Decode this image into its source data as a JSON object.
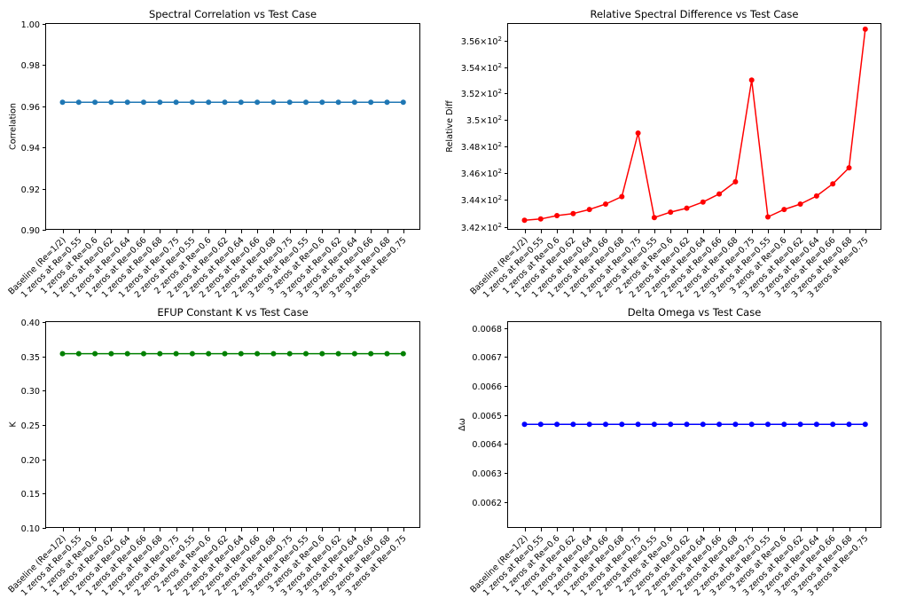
{
  "chart_data": [
    {
      "type": "line",
      "title": "Spectral Correlation vs Test Case",
      "xlabel": "",
      "ylabel": "Correlation",
      "ylim": [
        0.9,
        1.0
      ],
      "yticks": [
        0.9,
        0.92,
        0.94,
        0.96,
        0.98,
        1.0
      ],
      "ytick_labels": [
        "0.90",
        "0.92",
        "0.94",
        "0.96",
        "0.98",
        "1.00"
      ],
      "log_scale": false,
      "grid": false,
      "color": "#1f77b4",
      "categories": [
        "Baseline (Re=1/2)",
        "1 zeros at Re=0.55",
        "1 zeros at Re=0.6",
        "1 zeros at Re=0.62",
        "1 zeros at Re=0.64",
        "1 zeros at Re=0.66",
        "1 zeros at Re=0.68",
        "1 zeros at Re=0.75",
        "2 zeros at Re=0.55",
        "2 zeros at Re=0.6",
        "2 zeros at Re=0.62",
        "2 zeros at Re=0.64",
        "2 zeros at Re=0.66",
        "2 zeros at Re=0.68",
        "2 zeros at Re=0.75",
        "3 zeros at Re=0.55",
        "3 zeros at Re=0.6",
        "3 zeros at Re=0.62",
        "3 zeros at Re=0.64",
        "3 zeros at Re=0.66",
        "3 zeros at Re=0.68",
        "3 zeros at Re=0.75"
      ],
      "values": [
        0.962,
        0.962,
        0.962,
        0.962,
        0.962,
        0.962,
        0.962,
        0.962,
        0.962,
        0.962,
        0.962,
        0.962,
        0.962,
        0.962,
        0.962,
        0.962,
        0.962,
        0.962,
        0.962,
        0.962,
        0.962,
        0.962
      ]
    },
    {
      "type": "line",
      "title": "Relative Spectral Difference vs Test Case",
      "xlabel": "",
      "ylabel": "Relative Diff",
      "ylim": [
        341.8,
        357.3
      ],
      "yticks": [
        342,
        344,
        346,
        348,
        350,
        352,
        354,
        356
      ],
      "ytick_labels": [
        "3.42 × 10²",
        "3.44 × 10²",
        "3.46 × 10²",
        "3.48 × 10²",
        "3.5 × 10²",
        "3.52 × 10²",
        "3.54 × 10²",
        "3.56 × 10²"
      ],
      "log_scale": true,
      "grid": false,
      "color": "#ff0000",
      "categories": [
        "Baseline (Re=1/2)",
        "1 zeros at Re=0.55",
        "1 zeros at Re=0.6",
        "1 zeros at Re=0.62",
        "1 zeros at Re=0.64",
        "1 zeros at Re=0.66",
        "1 zeros at Re=0.68",
        "1 zeros at Re=0.75",
        "2 zeros at Re=0.55",
        "2 zeros at Re=0.6",
        "2 zeros at Re=0.62",
        "2 zeros at Re=0.64",
        "2 zeros at Re=0.66",
        "2 zeros at Re=0.68",
        "2 zeros at Re=0.75",
        "3 zeros at Re=0.55",
        "3 zeros at Re=0.6",
        "3 zeros at Re=0.62",
        "3 zeros at Re=0.64",
        "3 zeros at Re=0.66",
        "3 zeros at Re=0.68",
        "3 zeros at Re=0.75"
      ],
      "values": [
        342.5,
        342.6,
        342.85,
        343.0,
        343.3,
        343.7,
        344.25,
        349.0,
        342.7,
        343.1,
        343.4,
        343.85,
        344.45,
        345.35,
        353.0,
        342.75,
        343.3,
        343.7,
        344.3,
        345.2,
        346.4,
        356.9
      ]
    },
    {
      "type": "line",
      "title": "EFUP Constant K vs Test Case",
      "xlabel": "",
      "ylabel": "K",
      "ylim": [
        0.1,
        0.4
      ],
      "yticks": [
        0.1,
        0.15,
        0.2,
        0.25,
        0.3,
        0.35,
        0.4
      ],
      "ytick_labels": [
        "0.10",
        "0.15",
        "0.20",
        "0.25",
        "0.30",
        "0.35",
        "0.40"
      ],
      "log_scale": false,
      "grid": false,
      "color": "#008000",
      "categories": [
        "Baseline (Re=1/2)",
        "1 zeros at Re=0.55",
        "1 zeros at Re=0.6",
        "1 zeros at Re=0.62",
        "1 zeros at Re=0.64",
        "1 zeros at Re=0.66",
        "1 zeros at Re=0.68",
        "1 zeros at Re=0.75",
        "2 zeros at Re=0.55",
        "2 zeros at Re=0.6",
        "2 zeros at Re=0.62",
        "2 zeros at Re=0.64",
        "2 zeros at Re=0.66",
        "2 zeros at Re=0.68",
        "2 zeros at Re=0.75",
        "3 zeros at Re=0.55",
        "3 zeros at Re=0.6",
        "3 zeros at Re=0.62",
        "3 zeros at Re=0.64",
        "3 zeros at Re=0.66",
        "3 zeros at Re=0.68",
        "3 zeros at Re=0.75"
      ],
      "values": [
        0.354,
        0.354,
        0.354,
        0.354,
        0.354,
        0.354,
        0.354,
        0.354,
        0.354,
        0.354,
        0.354,
        0.354,
        0.354,
        0.354,
        0.354,
        0.354,
        0.354,
        0.354,
        0.354,
        0.354,
        0.354,
        0.354
      ]
    },
    {
      "type": "line",
      "title": "Delta Omega vs Test Case",
      "xlabel": "",
      "ylabel": "Δω",
      "ylim": [
        0.00611,
        0.00682
      ],
      "yticks": [
        0.0062,
        0.0063,
        0.0064,
        0.0065,
        0.0066,
        0.0067,
        0.0068
      ],
      "ytick_labels": [
        "0.0062",
        "0.0063",
        "0.0064",
        "0.0065",
        "0.0066",
        "0.0067",
        "0.0068"
      ],
      "log_scale": false,
      "grid": false,
      "color": "#0000ff",
      "categories": [
        "Baseline (Re=1/2)",
        "1 zeros at Re=0.55",
        "1 zeros at Re=0.6",
        "1 zeros at Re=0.62",
        "1 zeros at Re=0.64",
        "1 zeros at Re=0.66",
        "1 zeros at Re=0.68",
        "1 zeros at Re=0.75",
        "2 zeros at Re=0.55",
        "2 zeros at Re=0.6",
        "2 zeros at Re=0.62",
        "2 zeros at Re=0.64",
        "2 zeros at Re=0.66",
        "2 zeros at Re=0.68",
        "2 zeros at Re=0.75",
        "3 zeros at Re=0.55",
        "3 zeros at Re=0.6",
        "3 zeros at Re=0.62",
        "3 zeros at Re=0.64",
        "3 zeros at Re=0.66",
        "3 zeros at Re=0.68",
        "3 zeros at Re=0.75"
      ],
      "values": [
        0.006467,
        0.006467,
        0.006467,
        0.006467,
        0.006467,
        0.006467,
        0.006467,
        0.006467,
        0.006467,
        0.006467,
        0.006467,
        0.006467,
        0.006467,
        0.006467,
        0.006467,
        0.006467,
        0.006467,
        0.006467,
        0.006467,
        0.006467,
        0.006467,
        0.006467
      ]
    }
  ]
}
